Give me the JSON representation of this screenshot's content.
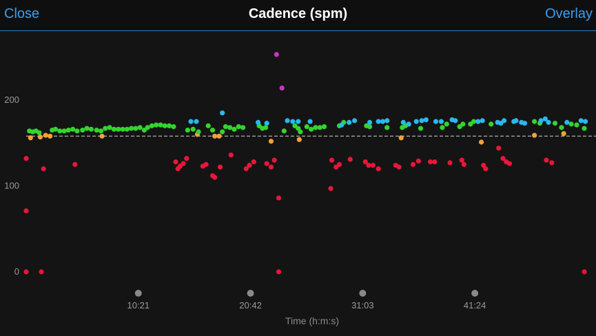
{
  "header": {
    "close_label": "Close",
    "title": "Cadence (spm)",
    "overlay_label": "Overlay"
  },
  "chart_data": {
    "type": "scatter",
    "title": "Cadence (spm)",
    "xlabel": "Time (h:m:s)",
    "ylabel": "",
    "x_ticks": [
      "10:21",
      "20:42",
      "31:03",
      "41:24"
    ],
    "x_tick_values": [
      10.35,
      20.7,
      31.05,
      41.4
    ],
    "xlim": [
      -0.3,
      51.8
    ],
    "y_ticks": [
      0,
      100,
      200
    ],
    "ylim": [
      -25,
      275
    ],
    "average_line": 158,
    "grid": false,
    "colors": {
      "red": "#e8173a",
      "orange": "#f4a13a",
      "green": "#33d42e",
      "blue": "#29b8ee",
      "purple": "#c636c6"
    },
    "series": [
      {
        "color": "red",
        "points": [
          [
            0,
            132
          ],
          [
            0,
            71
          ],
          [
            0,
            0
          ],
          [
            1.4,
            0
          ],
          [
            1.6,
            120
          ],
          [
            4.5,
            125
          ],
          [
            13.8,
            128
          ],
          [
            14,
            120
          ],
          [
            14.2,
            123
          ],
          [
            14.5,
            126
          ],
          [
            14.8,
            132
          ],
          [
            16.3,
            123
          ],
          [
            16.6,
            125
          ],
          [
            17.2,
            112
          ],
          [
            17.4,
            110
          ],
          [
            17.9,
            122
          ],
          [
            18.9,
            136
          ],
          [
            20.3,
            120
          ],
          [
            20.6,
            124
          ],
          [
            21,
            128
          ],
          [
            22.2,
            126
          ],
          [
            22.6,
            122
          ],
          [
            22.9,
            130
          ],
          [
            23.3,
            86
          ],
          [
            23.3,
            0
          ],
          [
            28.1,
            97
          ],
          [
            28.2,
            130
          ],
          [
            28.6,
            122
          ],
          [
            28.9,
            125
          ],
          [
            29.9,
            131
          ],
          [
            31.3,
            128
          ],
          [
            31.6,
            124
          ],
          [
            32,
            124
          ],
          [
            32.5,
            120
          ],
          [
            34.1,
            124
          ],
          [
            34.4,
            122
          ],
          [
            35.7,
            125
          ],
          [
            36.2,
            129
          ],
          [
            37.3,
            128
          ],
          [
            37.7,
            128
          ],
          [
            39.1,
            127
          ],
          [
            40.2,
            130
          ],
          [
            40.4,
            125
          ],
          [
            42.2,
            124
          ],
          [
            42.4,
            120
          ],
          [
            43.6,
            144
          ],
          [
            44,
            132
          ],
          [
            44.3,
            128
          ],
          [
            44.6,
            126
          ],
          [
            48,
            130
          ],
          [
            48.5,
            127
          ],
          [
            51.5,
            0
          ]
        ]
      },
      {
        "color": "orange",
        "points": [
          [
            0.4,
            156
          ],
          [
            1.3,
            157
          ],
          [
            1.8,
            159
          ],
          [
            2.2,
            158
          ],
          [
            7,
            158
          ],
          [
            15.8,
            160
          ],
          [
            17.4,
            158
          ],
          [
            17.8,
            158
          ],
          [
            22.6,
            152
          ],
          [
            25.2,
            154
          ],
          [
            34.6,
            156
          ],
          [
            42,
            151
          ],
          [
            46.9,
            159
          ],
          [
            49.6,
            161
          ]
        ]
      },
      {
        "color": "green",
        "points": [
          [
            0.3,
            164
          ],
          [
            0.6,
            163
          ],
          [
            0.9,
            164
          ],
          [
            1.2,
            162
          ],
          [
            2.4,
            165
          ],
          [
            2.7,
            166
          ],
          [
            3.1,
            164
          ],
          [
            3.5,
            164
          ],
          [
            3.9,
            165
          ],
          [
            4.3,
            166
          ],
          [
            4.7,
            164
          ],
          [
            5.2,
            165
          ],
          [
            5.6,
            167
          ],
          [
            6,
            166
          ],
          [
            6.5,
            165
          ],
          [
            6.9,
            164
          ],
          [
            7.3,
            167
          ],
          [
            7.7,
            168
          ],
          [
            8.1,
            166
          ],
          [
            8.5,
            166
          ],
          [
            8.9,
            166
          ],
          [
            9.3,
            166
          ],
          [
            9.7,
            167
          ],
          [
            10.1,
            167
          ],
          [
            10.5,
            168
          ],
          [
            10.9,
            165
          ],
          [
            11.2,
            168
          ],
          [
            11.6,
            170
          ],
          [
            12,
            171
          ],
          [
            12.4,
            171
          ],
          [
            12.8,
            170
          ],
          [
            13.2,
            170
          ],
          [
            13.6,
            169
          ],
          [
            14.9,
            165
          ],
          [
            15.4,
            166
          ],
          [
            15.9,
            163
          ],
          [
            16.8,
            170
          ],
          [
            17.2,
            165
          ],
          [
            18.1,
            163
          ],
          [
            18.4,
            169
          ],
          [
            18.8,
            168
          ],
          [
            19.2,
            166
          ],
          [
            19.6,
            169
          ],
          [
            20,
            168
          ],
          [
            21.5,
            170
          ],
          [
            21.8,
            167
          ],
          [
            22.1,
            168
          ],
          [
            23.8,
            164
          ],
          [
            24.8,
            170
          ],
          [
            25.1,
            167
          ],
          [
            25.3,
            163
          ],
          [
            25.9,
            169
          ],
          [
            26.3,
            166
          ],
          [
            26.7,
            168
          ],
          [
            27.1,
            168
          ],
          [
            27.5,
            169
          ],
          [
            28.9,
            170
          ],
          [
            29.3,
            174
          ],
          [
            31.4,
            170
          ],
          [
            31.7,
            169
          ],
          [
            33.3,
            168
          ],
          [
            34.7,
            168
          ],
          [
            35,
            170
          ],
          [
            36.4,
            167
          ],
          [
            38.4,
            168
          ],
          [
            38.8,
            172
          ],
          [
            40,
            169
          ],
          [
            40.3,
            172
          ],
          [
            41,
            172
          ],
          [
            41.3,
            175
          ],
          [
            42.9,
            172
          ],
          [
            46.9,
            175
          ],
          [
            47.4,
            173
          ],
          [
            48.8,
            173
          ],
          [
            49.4,
            168
          ],
          [
            50.3,
            172
          ],
          [
            50.8,
            171
          ],
          [
            51.5,
            167
          ]
        ]
      },
      {
        "color": "blue",
        "points": [
          [
            15.2,
            175
          ],
          [
            15.7,
            175
          ],
          [
            18.1,
            185
          ],
          [
            21.4,
            174
          ],
          [
            22.2,
            173
          ],
          [
            24.1,
            176
          ],
          [
            24.6,
            175
          ],
          [
            25.1,
            175
          ],
          [
            26.2,
            175
          ],
          [
            29.1,
            171
          ],
          [
            29.8,
            174
          ],
          [
            30.3,
            176
          ],
          [
            31.7,
            174
          ],
          [
            32.5,
            175
          ],
          [
            32.9,
            175
          ],
          [
            33.3,
            176
          ],
          [
            34.8,
            174
          ],
          [
            35.3,
            172
          ],
          [
            36,
            175
          ],
          [
            36.5,
            176
          ],
          [
            36.9,
            177
          ],
          [
            37.8,
            175
          ],
          [
            38.3,
            175
          ],
          [
            39.3,
            177
          ],
          [
            39.6,
            176
          ],
          [
            41.7,
            175
          ],
          [
            42.1,
            176
          ],
          [
            43.5,
            174
          ],
          [
            43.8,
            173
          ],
          [
            44.1,
            176
          ],
          [
            45,
            175
          ],
          [
            45.2,
            176
          ],
          [
            45.7,
            174
          ],
          [
            46,
            173
          ],
          [
            47.5,
            176
          ],
          [
            47.9,
            178
          ],
          [
            48.2,
            174
          ],
          [
            49.9,
            174
          ],
          [
            51.2,
            176
          ],
          [
            51.6,
            175
          ]
        ]
      },
      {
        "color": "purple",
        "points": [
          [
            23.1,
            253
          ],
          [
            23.6,
            214
          ]
        ]
      }
    ]
  }
}
